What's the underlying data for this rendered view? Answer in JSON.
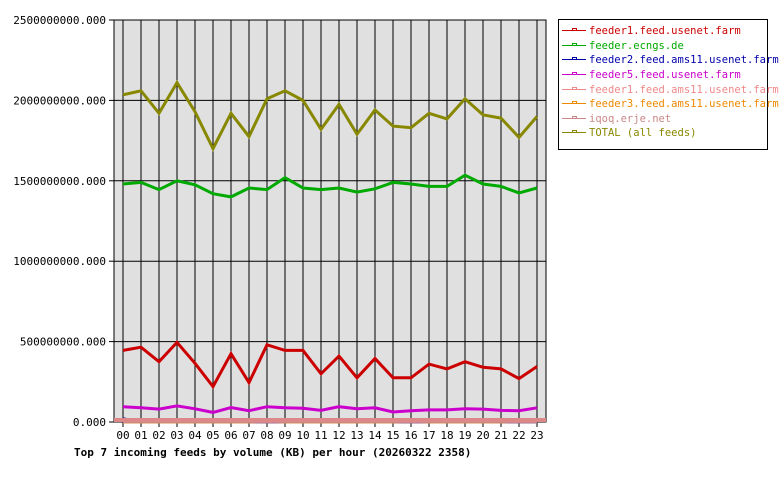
{
  "chart_data": {
    "type": "line",
    "title": "Top 7 incoming feeds by volume (KB) per hour (20260322 2358)",
    "xlabel": "",
    "ylabel": "",
    "ylim": [
      0,
      2500000000
    ],
    "yticks": [
      "0.000",
      "500000000.000",
      "1000000000.000",
      "1500000000.000",
      "2000000000.000",
      "2500000000.000"
    ],
    "grid": true,
    "legend_position": "right",
    "categories": [
      "00",
      "01",
      "02",
      "03",
      "04",
      "05",
      "06",
      "07",
      "08",
      "09",
      "10",
      "11",
      "12",
      "13",
      "14",
      "15",
      "16",
      "17",
      "18",
      "19",
      "20",
      "21",
      "22",
      "23"
    ],
    "series": [
      {
        "name": "feeder1.feed.usenet.farm",
        "color": "#cc0000",
        "values": [
          445000000,
          465000000,
          375000000,
          495000000,
          365000000,
          220000000,
          425000000,
          245000000,
          480000000,
          445000000,
          445000000,
          300000000,
          410000000,
          275000000,
          395000000,
          275000000,
          275000000,
          360000000,
          330000000,
          375000000,
          340000000,
          330000000,
          270000000,
          345000000
        ]
      },
      {
        "name": "feeder.ecngs.de",
        "color": "#00aa00",
        "values": [
          1480000000,
          1490000000,
          1445000000,
          1500000000,
          1475000000,
          1420000000,
          1400000000,
          1455000000,
          1445000000,
          1520000000,
          1455000000,
          1445000000,
          1455000000,
          1430000000,
          1450000000,
          1490000000,
          1480000000,
          1465000000,
          1465000000,
          1535000000,
          1480000000,
          1465000000,
          1425000000,
          1455000000
        ]
      },
      {
        "name": "feeder2.feed.ams11.usenet.farm",
        "color": "#0000aa",
        "values": [
          20000000,
          0,
          0,
          0,
          5000000,
          15000000,
          0,
          0,
          0,
          0,
          0,
          0,
          0,
          0,
          0,
          0,
          0,
          0,
          0,
          0,
          0,
          0,
          0,
          0
        ]
      },
      {
        "name": "feeder5.feed.usenet.farm",
        "color": "#cc00cc",
        "values": [
          95000000,
          88000000,
          80000000,
          100000000,
          82000000,
          60000000,
          90000000,
          70000000,
          95000000,
          88000000,
          85000000,
          72000000,
          95000000,
          82000000,
          88000000,
          62000000,
          70000000,
          75000000,
          75000000,
          82000000,
          80000000,
          72000000,
          70000000,
          88000000
        ]
      },
      {
        "name": "feeder1.feed.ams11.usenet.farm",
        "color": "#ee8888",
        "values": [
          2000000,
          2000000,
          2000000,
          2000000,
          2000000,
          2000000,
          2000000,
          2000000,
          2000000,
          2000000,
          2000000,
          2000000,
          2000000,
          2000000,
          2000000,
          2000000,
          2000000,
          2000000,
          2000000,
          2000000,
          2000000,
          2000000,
          2000000,
          2000000
        ]
      },
      {
        "name": "feeder3.feed.ams11.usenet.farm",
        "color": "#ee8800",
        "values": [
          0,
          0,
          0,
          0,
          0,
          0,
          0,
          0,
          6000000,
          0,
          0,
          0,
          0,
          0,
          0,
          0,
          6000000,
          0,
          0,
          0,
          0,
          0,
          6000000,
          6000000
        ]
      },
      {
        "name": "iqoq.erje.net",
        "color": "#cc8888",
        "values": [
          1000000,
          1000000,
          1000000,
          1000000,
          1000000,
          1000000,
          1000000,
          1000000,
          1000000,
          1000000,
          1000000,
          1000000,
          1000000,
          1000000,
          1000000,
          1000000,
          1000000,
          1000000,
          1000000,
          1000000,
          1000000,
          1000000,
          1000000,
          1000000
        ]
      },
      {
        "name": "TOTAL (all feeds)",
        "color": "#888800",
        "values": [
          2035000000,
          2060000000,
          1920000000,
          2110000000,
          1930000000,
          1700000000,
          1920000000,
          1775000000,
          2010000000,
          2060000000,
          2000000000,
          1820000000,
          1975000000,
          1790000000,
          1940000000,
          1840000000,
          1830000000,
          1920000000,
          1885000000,
          2010000000,
          1910000000,
          1890000000,
          1770000000,
          1900000000
        ]
      }
    ]
  },
  "legend": {
    "items": [
      {
        "label": "feeder1.feed.usenet.farm",
        "color": "#cc0000"
      },
      {
        "label": "feeder.ecngs.de",
        "color": "#00aa00"
      },
      {
        "label": "feeder2.feed.ams11.usenet.farm",
        "color": "#0000aa"
      },
      {
        "label": "feeder5.feed.usenet.farm",
        "color": "#cc00cc"
      },
      {
        "label": "feeder1.feed.ams11.usenet.farm",
        "color": "#ee8888"
      },
      {
        "label": "feeder3.feed.ams11.usenet.farm",
        "color": "#ee8800"
      },
      {
        "label": "iqoq.erje.net",
        "color": "#cc8888"
      },
      {
        "label": "TOTAL (all feeds)",
        "color": "#888800"
      }
    ]
  }
}
